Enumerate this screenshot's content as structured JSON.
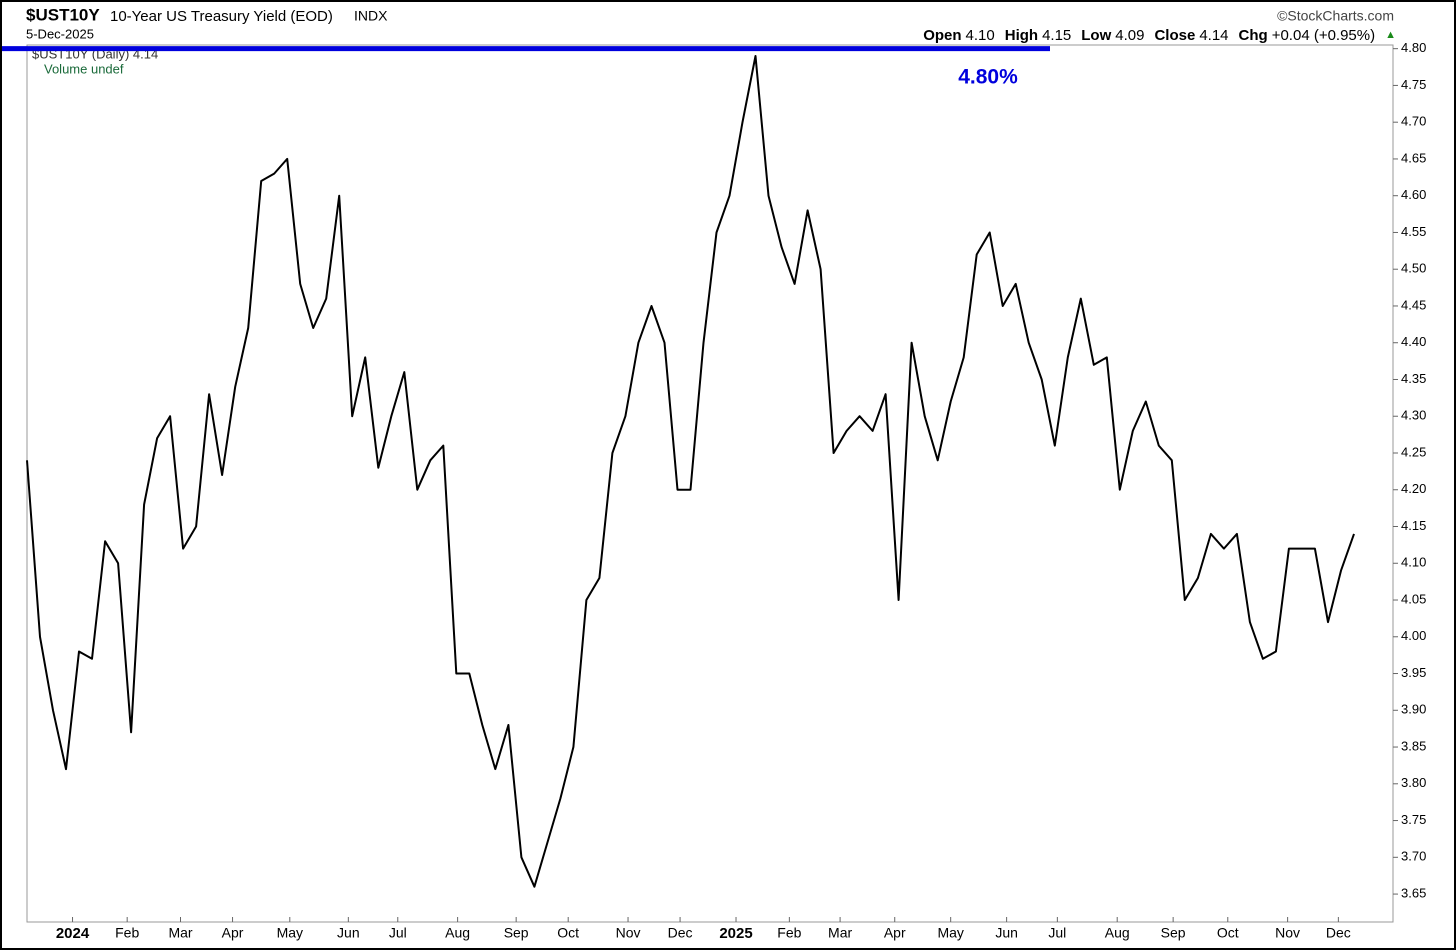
{
  "chart_data": {
    "type": "line",
    "title": "$UST10Y",
    "subtitle": "10-Year US Treasury Yield (EOD)",
    "exchange": "INDX",
    "date": "5-Dec-2025",
    "source": "©StockCharts.com",
    "quote": [
      {
        "label": "Open",
        "value": "4.10"
      },
      {
        "label": "High",
        "value": "4.15"
      },
      {
        "label": "Low",
        "value": "4.09"
      },
      {
        "label": "Close",
        "value": "4.14"
      },
      {
        "label": "Chg",
        "value": "+0.04 (+0.95%)"
      }
    ],
    "change_arrow": "▲",
    "legend_lines": [
      "$UST10Y (Daily) 4.14",
      "Volume undef"
    ],
    "x": [
      0,
      1,
      2,
      3,
      4,
      5,
      6,
      7,
      8,
      9,
      10,
      11,
      12,
      13,
      14,
      15,
      16,
      17,
      18,
      19,
      20,
      21,
      22,
      23,
      24,
      25,
      26,
      27,
      28,
      29,
      30,
      31,
      32,
      33,
      34,
      35,
      36,
      37,
      38,
      39,
      40,
      41,
      42,
      43,
      44,
      45,
      46,
      47,
      48,
      49,
      50,
      51,
      52,
      53,
      54,
      55,
      56,
      57,
      58,
      59,
      60,
      61,
      62,
      63,
      64,
      65,
      66,
      67,
      68,
      69,
      70,
      71,
      72,
      73,
      74,
      75,
      76,
      77,
      78,
      79,
      80,
      81,
      82,
      83,
      84,
      85,
      86,
      87,
      88,
      89,
      90,
      91,
      92,
      93,
      94,
      95,
      96,
      97,
      98,
      99,
      100,
      101,
      102
    ],
    "series": [
      {
        "name": "$UST10Y",
        "color": "#000000",
        "values": [
          4.24,
          4.0,
          3.9,
          3.82,
          3.98,
          3.97,
          4.13,
          4.1,
          3.87,
          4.18,
          4.27,
          4.3,
          4.12,
          4.15,
          4.33,
          4.22,
          4.34,
          4.42,
          4.62,
          4.63,
          4.65,
          4.48,
          4.42,
          4.46,
          4.6,
          4.3,
          4.38,
          4.23,
          4.3,
          4.36,
          4.2,
          4.24,
          4.26,
          3.95,
          3.95,
          3.88,
          3.82,
          3.88,
          3.7,
          3.66,
          3.72,
          3.78,
          3.85,
          4.05,
          4.08,
          4.25,
          4.3,
          4.4,
          4.45,
          4.4,
          4.2,
          4.2,
          4.4,
          4.55,
          4.6,
          4.7,
          4.79,
          4.6,
          4.53,
          4.48,
          4.58,
          4.5,
          4.25,
          4.28,
          4.3,
          4.28,
          4.33,
          4.05,
          4.4,
          4.3,
          4.24,
          4.32,
          4.38,
          4.52,
          4.55,
          4.45,
          4.48,
          4.4,
          4.35,
          4.26,
          4.38,
          4.46,
          4.37,
          4.38,
          4.2,
          4.28,
          4.32,
          4.26,
          4.24,
          4.05,
          4.08,
          4.14,
          4.12,
          4.14,
          4.02,
          3.97,
          3.98,
          4.12,
          4.12,
          4.12,
          4.02,
          4.09,
          4.14
        ]
      }
    ],
    "hline": {
      "value": 4.8,
      "label": "4.80%",
      "color": "#0000dd"
    },
    "xlim": [
      0,
      105
    ],
    "xticks": [
      {
        "value": 3.5,
        "label": "2024"
      },
      {
        "value": 7.7,
        "label": "Feb"
      },
      {
        "value": 11.8,
        "label": "Mar"
      },
      {
        "value": 15.8,
        "label": "Apr"
      },
      {
        "value": 20.2,
        "label": "May"
      },
      {
        "value": 24.7,
        "label": "Jun"
      },
      {
        "value": 28.5,
        "label": "Jul"
      },
      {
        "value": 33.1,
        "label": "Aug"
      },
      {
        "value": 37.6,
        "label": "Sep"
      },
      {
        "value": 41.6,
        "label": "Oct"
      },
      {
        "value": 46.2,
        "label": "Nov"
      },
      {
        "value": 50.2,
        "label": "Dec"
      },
      {
        "value": 54.5,
        "label": "2025"
      },
      {
        "value": 58.6,
        "label": "Feb"
      },
      {
        "value": 62.5,
        "label": "Mar"
      },
      {
        "value": 66.7,
        "label": "Apr"
      },
      {
        "value": 71,
        "label": "May"
      },
      {
        "value": 75.3,
        "label": "Jun"
      },
      {
        "value": 79.2,
        "label": "Jul"
      },
      {
        "value": 83.8,
        "label": "Aug"
      },
      {
        "value": 88.1,
        "label": "Sep"
      },
      {
        "value": 92.3,
        "label": "Oct"
      },
      {
        "value": 96.9,
        "label": "Nov"
      },
      {
        "value": 100.8,
        "label": "Dec"
      }
    ],
    "ylim": [
      3.612,
      4.805
    ],
    "yticks": [
      {
        "value": 3.65,
        "label": "3.65"
      },
      {
        "value": 3.7,
        "label": "3.70"
      },
      {
        "value": 3.75,
        "label": "3.75"
      },
      {
        "value": 3.8,
        "label": "3.80"
      },
      {
        "value": 3.85,
        "label": "3.85"
      },
      {
        "value": 3.9,
        "label": "3.90"
      },
      {
        "value": 3.95,
        "label": "3.95"
      },
      {
        "value": 4,
        "label": "4.00"
      },
      {
        "value": 4.05,
        "label": "4.05"
      },
      {
        "value": 4.1,
        "label": "4.10"
      },
      {
        "value": 4.15,
        "label": "4.15"
      },
      {
        "value": 4.2,
        "label": "4.20"
      },
      {
        "value": 4.25,
        "label": "4.25"
      },
      {
        "value": 4.3,
        "label": "4.30"
      },
      {
        "value": 4.35,
        "label": "4.35"
      },
      {
        "value": 4.4,
        "label": "4.40"
      },
      {
        "value": 4.45,
        "label": "4.45"
      },
      {
        "value": 4.5,
        "label": "4.50"
      },
      {
        "value": 4.55,
        "label": "4.55"
      },
      {
        "value": 4.6,
        "label": "4.60"
      },
      {
        "value": 4.65,
        "label": "4.65"
      },
      {
        "value": 4.7,
        "label": "4.70"
      },
      {
        "value": 4.75,
        "label": "4.75"
      },
      {
        "value": 4.8,
        "label": "4.80"
      }
    ],
    "grid": false
  }
}
